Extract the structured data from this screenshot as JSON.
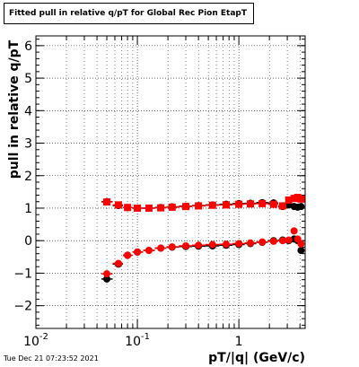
{
  "title": "Fitted pull in relative q/pT for Global Rec Pion EtapT",
  "timestamp": "Tue Dec 21 07:23:52 2021",
  "chart_data": {
    "type": "scatter",
    "title": "Fitted pull in relative q/pT for Global Rec Pion EtapT",
    "xlabel": "pT/|q| (GeV/c)",
    "ylabel": "pull in relative q/pT",
    "xscale": "log",
    "xlim": [
      0.01,
      4.5
    ],
    "ylim": [
      -2.7,
      6.3
    ],
    "grid": true,
    "x_tick_labels": [
      "10^-2",
      "10^-1",
      "1"
    ],
    "y_tick_labels": [
      "-2",
      "-1",
      "0",
      "1",
      "2",
      "3",
      "4",
      "5",
      "6"
    ],
    "series": [
      {
        "color": "#000000",
        "marker": "circle",
        "x": [
          0.05,
          0.065,
          0.08,
          0.1,
          0.13,
          0.17,
          0.22,
          0.3,
          0.4,
          0.55,
          0.75,
          1.0,
          1.3,
          1.7,
          2.2,
          2.7,
          3.1,
          3.5,
          3.8,
          4.1
        ],
        "y": [
          1.2,
          1.08,
          1.02,
          1.0,
          1.0,
          1.02,
          1.04,
          1.06,
          1.08,
          1.1,
          1.12,
          1.14,
          1.15,
          1.17,
          1.16,
          1.05,
          1.1,
          1.05,
          1.03,
          1.05
        ]
      },
      {
        "color": "#000000",
        "marker": "circle",
        "x": [
          0.05,
          0.065,
          0.08,
          0.1,
          0.13,
          0.17,
          0.22,
          0.3,
          0.4,
          0.55,
          0.75,
          1.0,
          1.3,
          1.7,
          2.2,
          2.7,
          3.1,
          3.5,
          3.8,
          4.1
        ],
        "y": [
          -1.18,
          -0.72,
          -0.45,
          -0.35,
          -0.3,
          -0.23,
          -0.2,
          -0.18,
          -0.17,
          -0.16,
          -0.14,
          -0.12,
          -0.09,
          -0.05,
          0.0,
          0.02,
          0.0,
          0.05,
          0.0,
          -0.3
        ]
      },
      {
        "color": "#ff0000",
        "marker": "square",
        "x": [
          0.05,
          0.065,
          0.08,
          0.1,
          0.13,
          0.17,
          0.22,
          0.3,
          0.4,
          0.55,
          0.75,
          1.0,
          1.3,
          1.7,
          2.2,
          2.7,
          3.1,
          3.5,
          3.8,
          4.1
        ],
        "y": [
          1.19,
          1.1,
          1.02,
          1.0,
          1.0,
          1.01,
          1.03,
          1.05,
          1.07,
          1.09,
          1.1,
          1.12,
          1.13,
          1.14,
          1.12,
          1.07,
          1.25,
          1.3,
          1.33,
          1.28
        ]
      },
      {
        "color": "#ff0000",
        "marker": "circle",
        "x": [
          0.05,
          0.065,
          0.08,
          0.1,
          0.13,
          0.17,
          0.22,
          0.3,
          0.4,
          0.55,
          0.75,
          1.0,
          1.3,
          1.7,
          2.2,
          2.7,
          3.1,
          3.5,
          3.8,
          4.1
        ],
        "y": [
          -1.02,
          -0.7,
          -0.45,
          -0.35,
          -0.3,
          -0.23,
          -0.19,
          -0.16,
          -0.14,
          -0.12,
          -0.11,
          -0.09,
          -0.07,
          -0.04,
          -0.02,
          0.0,
          0.02,
          0.3,
          0.05,
          -0.1
        ]
      }
    ]
  }
}
